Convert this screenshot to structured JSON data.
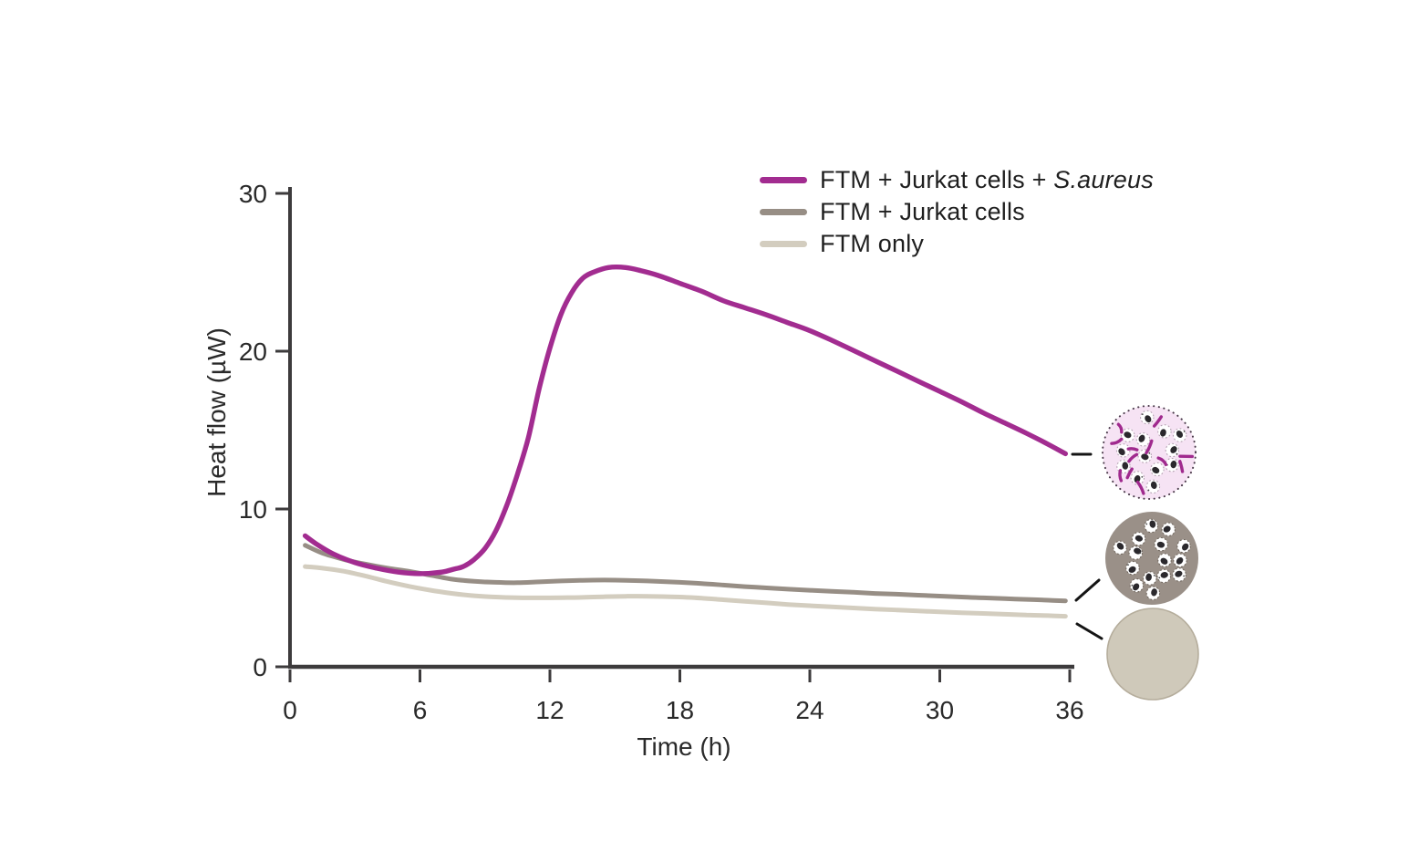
{
  "figure": {
    "background": "#ffffff"
  },
  "chart_data": {
    "type": "line",
    "title": "",
    "xlabel": "Time (h)",
    "ylabel": "Heat flow (µW)",
    "xlim": [
      0,
      36
    ],
    "ylim": [
      0,
      30
    ],
    "xticks": [
      0,
      6,
      12,
      18,
      24,
      30,
      36
    ],
    "yticks": [
      0,
      10,
      20,
      30
    ],
    "grid": false,
    "legend_position": "top-right",
    "series": [
      {
        "name": "FTM + Jurkat cells + S.aureus",
        "label_plain": "FTM + Jurkat cells + ",
        "label_italic": "S.aureus",
        "color": "#a22c90",
        "points": [
          [
            0.7,
            8.3
          ],
          [
            1.2,
            7.8
          ],
          [
            2,
            7.15
          ],
          [
            3,
            6.6
          ],
          [
            4,
            6.25
          ],
          [
            5,
            6.0
          ],
          [
            6,
            5.9
          ],
          [
            7,
            6.0
          ],
          [
            7.6,
            6.2
          ],
          [
            8,
            6.35
          ],
          [
            8.5,
            6.8
          ],
          [
            9,
            7.5
          ],
          [
            9.5,
            8.6
          ],
          [
            10,
            10.2
          ],
          [
            10.5,
            12.2
          ],
          [
            11,
            14.5
          ],
          [
            11.5,
            17.6
          ],
          [
            12,
            20.2
          ],
          [
            12.5,
            22.3
          ],
          [
            13,
            23.7
          ],
          [
            13.5,
            24.6
          ],
          [
            14,
            25.0
          ],
          [
            14.7,
            25.3
          ],
          [
            15.5,
            25.3
          ],
          [
            16.2,
            25.1
          ],
          [
            17,
            24.8
          ],
          [
            18,
            24.3
          ],
          [
            19,
            23.8
          ],
          [
            20,
            23.2
          ],
          [
            21,
            22.75
          ],
          [
            22,
            22.3
          ],
          [
            23,
            21.8
          ],
          [
            24,
            21.3
          ],
          [
            25,
            20.7
          ],
          [
            26,
            20.05
          ],
          [
            27,
            19.4
          ],
          [
            28,
            18.75
          ],
          [
            29,
            18.1
          ],
          [
            30,
            17.45
          ],
          [
            31,
            16.8
          ],
          [
            32,
            16.1
          ],
          [
            33,
            15.45
          ],
          [
            34,
            14.8
          ],
          [
            35,
            14.1
          ],
          [
            35.8,
            13.5
          ]
        ]
      },
      {
        "name": "FTM + Jurkat cells",
        "label_plain": "FTM + Jurkat cells",
        "label_italic": "",
        "color": "#978e85",
        "points": [
          [
            0.7,
            7.7
          ],
          [
            1.5,
            7.2
          ],
          [
            2.5,
            6.8
          ],
          [
            3.5,
            6.5
          ],
          [
            4.5,
            6.25
          ],
          [
            5.5,
            6.05
          ],
          [
            6.5,
            5.8
          ],
          [
            7.5,
            5.55
          ],
          [
            8.5,
            5.42
          ],
          [
            9.5,
            5.35
          ],
          [
            10.5,
            5.33
          ],
          [
            11.5,
            5.38
          ],
          [
            12.5,
            5.44
          ],
          [
            13.5,
            5.48
          ],
          [
            14.5,
            5.5
          ],
          [
            15.5,
            5.48
          ],
          [
            16.5,
            5.44
          ],
          [
            18,
            5.35
          ],
          [
            19,
            5.28
          ],
          [
            20,
            5.18
          ],
          [
            21,
            5.08
          ],
          [
            22,
            5.0
          ],
          [
            23,
            4.92
          ],
          [
            24,
            4.85
          ],
          [
            25,
            4.78
          ],
          [
            26,
            4.72
          ],
          [
            27,
            4.65
          ],
          [
            28,
            4.6
          ],
          [
            29,
            4.54
          ],
          [
            30,
            4.48
          ],
          [
            31,
            4.42
          ],
          [
            32,
            4.37
          ],
          [
            33,
            4.32
          ],
          [
            34,
            4.27
          ],
          [
            35,
            4.22
          ],
          [
            35.8,
            4.18
          ]
        ]
      },
      {
        "name": "FTM only",
        "label_plain": "FTM only",
        "label_italic": "",
        "color": "#d3cdbf",
        "points": [
          [
            0.7,
            6.35
          ],
          [
            1.5,
            6.25
          ],
          [
            2.5,
            6.05
          ],
          [
            3.5,
            5.75
          ],
          [
            4.5,
            5.4
          ],
          [
            5.5,
            5.1
          ],
          [
            6.5,
            4.85
          ],
          [
            7.5,
            4.65
          ],
          [
            8.5,
            4.5
          ],
          [
            9.5,
            4.42
          ],
          [
            10.5,
            4.38
          ],
          [
            11.5,
            4.37
          ],
          [
            12.5,
            4.38
          ],
          [
            13.5,
            4.4
          ],
          [
            14.5,
            4.44
          ],
          [
            15.5,
            4.47
          ],
          [
            16.5,
            4.47
          ],
          [
            18,
            4.42
          ],
          [
            19,
            4.35
          ],
          [
            20,
            4.25
          ],
          [
            21,
            4.15
          ],
          [
            22,
            4.05
          ],
          [
            23,
            3.95
          ],
          [
            24,
            3.87
          ],
          [
            25,
            3.8
          ],
          [
            26,
            3.73
          ],
          [
            27,
            3.66
          ],
          [
            28,
            3.6
          ],
          [
            29,
            3.54
          ],
          [
            30,
            3.48
          ],
          [
            31,
            3.43
          ],
          [
            32,
            3.38
          ],
          [
            33,
            3.33
          ],
          [
            34,
            3.28
          ],
          [
            35,
            3.24
          ],
          [
            35.8,
            3.2
          ]
        ]
      }
    ]
  },
  "annotations": {
    "insets": [
      {
        "id": "ftm-jurkat-saureus",
        "description": "medium with Jurkat cells and S. aureus bacteria",
        "fill": "#f6e3f4",
        "border": "#4a3a4a",
        "border_style": "dotted",
        "cells": 13,
        "bacteria": 12,
        "bacteria_color": "#a02a8e"
      },
      {
        "id": "ftm-jurkat",
        "description": "medium with Jurkat cells",
        "fill": "#9a9088",
        "border": "none",
        "border_style": "none",
        "cells": 15,
        "bacteria": 0,
        "bacteria_color": ""
      },
      {
        "id": "ftm-only",
        "description": "sterile FTM medium only",
        "fill": "#cfc9ba",
        "border": "#b5ad9c",
        "border_style": "solid",
        "cells": 0,
        "bacteria": 0,
        "bacteria_color": ""
      }
    ]
  }
}
